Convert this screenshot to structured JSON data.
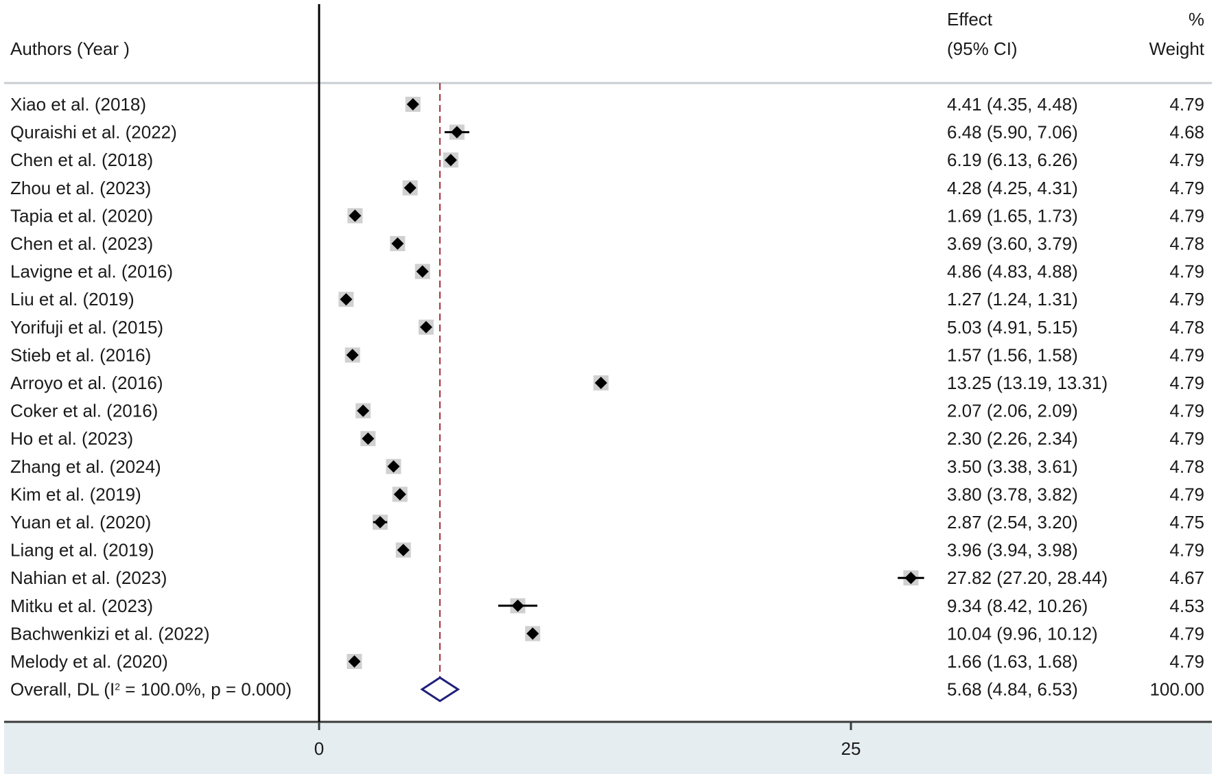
{
  "chart_data": {
    "type": "forest",
    "header": {
      "authors_label": "Authors (Year )",
      "effect_label_1": "Effect",
      "effect_label_2": "(95% CI)",
      "weight_label_1": "%",
      "weight_label_2": "Weight"
    },
    "studies": [
      {
        "label": "Xiao et al. (2018)",
        "effect": 4.41,
        "lower": 4.35,
        "upper": 4.48,
        "ci_text": "4.41 (4.35, 4.48)",
        "weight": "4.79"
      },
      {
        "label": "Quraishi et al.  (2022)",
        "effect": 6.48,
        "lower": 5.9,
        "upper": 7.06,
        "ci_text": "6.48 (5.90, 7.06)",
        "weight": "4.68"
      },
      {
        "label": "Chen et al.  (2018)",
        "effect": 6.19,
        "lower": 6.13,
        "upper": 6.26,
        "ci_text": "6.19 (6.13, 6.26)",
        "weight": "4.79"
      },
      {
        "label": "Zhou et al. (2023)",
        "effect": 4.28,
        "lower": 4.25,
        "upper": 4.31,
        "ci_text": "4.28 (4.25, 4.31)",
        "weight": "4.79"
      },
      {
        "label": "Tapia et al. (2020)",
        "effect": 1.69,
        "lower": 1.65,
        "upper": 1.73,
        "ci_text": "1.69 (1.65, 1.73)",
        "weight": "4.79"
      },
      {
        "label": "Chen et al. (2023)",
        "effect": 3.69,
        "lower": 3.6,
        "upper": 3.79,
        "ci_text": "3.69 (3.60, 3.79)",
        "weight": "4.78"
      },
      {
        "label": "Lavigne et al. (2016)",
        "effect": 4.86,
        "lower": 4.83,
        "upper": 4.88,
        "ci_text": "4.86 (4.83, 4.88)",
        "weight": "4.79"
      },
      {
        "label": "Liu et al. (2019)",
        "effect": 1.27,
        "lower": 1.24,
        "upper": 1.31,
        "ci_text": "1.27 (1.24, 1.31)",
        "weight": "4.79"
      },
      {
        "label": "Yorifuji et al. (2015)",
        "effect": 5.03,
        "lower": 4.91,
        "upper": 5.15,
        "ci_text": "5.03 (4.91, 5.15)",
        "weight": "4.78"
      },
      {
        "label": "Stieb et al. (2016)",
        "effect": 1.57,
        "lower": 1.56,
        "upper": 1.58,
        "ci_text": "1.57 (1.56, 1.58)",
        "weight": "4.79"
      },
      {
        "label": "Arroyo et al. (2016)",
        "effect": 13.25,
        "lower": 13.19,
        "upper": 13.31,
        "ci_text": "13.25 (13.19, 13.31)",
        "weight": "4.79"
      },
      {
        "label": "Coker et al.  (2016)",
        "effect": 2.07,
        "lower": 2.06,
        "upper": 2.09,
        "ci_text": "2.07 (2.06, 2.09)",
        "weight": "4.79"
      },
      {
        "label": "Ho et al.  (2023)",
        "effect": 2.3,
        "lower": 2.26,
        "upper": 2.34,
        "ci_text": "2.30 (2.26, 2.34)",
        "weight": "4.79"
      },
      {
        "label": "Zhang et al. (2024)",
        "effect": 3.5,
        "lower": 3.38,
        "upper": 3.61,
        "ci_text": "3.50 (3.38, 3.61)",
        "weight": "4.78"
      },
      {
        "label": "Kim et al.  (2019)",
        "effect": 3.8,
        "lower": 3.78,
        "upper": 3.82,
        "ci_text": "3.80 (3.78, 3.82)",
        "weight": "4.79"
      },
      {
        "label": "Yuan et al. (2020)",
        "effect": 2.87,
        "lower": 2.54,
        "upper": 3.2,
        "ci_text": "2.87 (2.54, 3.20)",
        "weight": "4.75"
      },
      {
        "label": "Liang et al. (2019)",
        "effect": 3.96,
        "lower": 3.94,
        "upper": 3.98,
        "ci_text": "3.96 (3.94, 3.98)",
        "weight": "4.79"
      },
      {
        "label": "Nahian et al. (2023)",
        "effect": 27.82,
        "lower": 27.2,
        "upper": 28.44,
        "ci_text": "27.82 (27.20, 28.44)",
        "weight": "4.67"
      },
      {
        "label": "Mitku  et al. (2023)",
        "effect": 9.34,
        "lower": 8.42,
        "upper": 10.26,
        "ci_text": "9.34 (8.42, 10.26)",
        "weight": "4.53"
      },
      {
        "label": "Bachwenkizi et al.  (2022)",
        "effect": 10.04,
        "lower": 9.96,
        "upper": 10.12,
        "ci_text": "10.04 (9.96, 10.12)",
        "weight": "4.79"
      },
      {
        "label": "Melody et al. (2020)",
        "effect": 1.66,
        "lower": 1.63,
        "upper": 1.68,
        "ci_text": "1.66 (1.63, 1.68)",
        "weight": "4.79"
      }
    ],
    "overall": {
      "label_prefix": "Overall, DL (I",
      "label_sup": "2",
      "label_suffix": " = 100.0%, p = 0.000)",
      "effect": 5.68,
      "lower": 4.84,
      "upper": 6.53,
      "ci_text": "5.68 (4.84, 6.53)",
      "weight": "100.00"
    },
    "x_axis": {
      "ticks": [
        0,
        25
      ],
      "tick_labels": [
        "0",
        "25"
      ],
      "xlim": [
        -14.9,
        42.2
      ]
    },
    "colors": {
      "marker": "#000000",
      "overall_diamond": "#1f1f7a",
      "reference_line": "#a0303a",
      "axis_band": "#e6edf0",
      "header_rule": "#c8cdd2"
    }
  }
}
